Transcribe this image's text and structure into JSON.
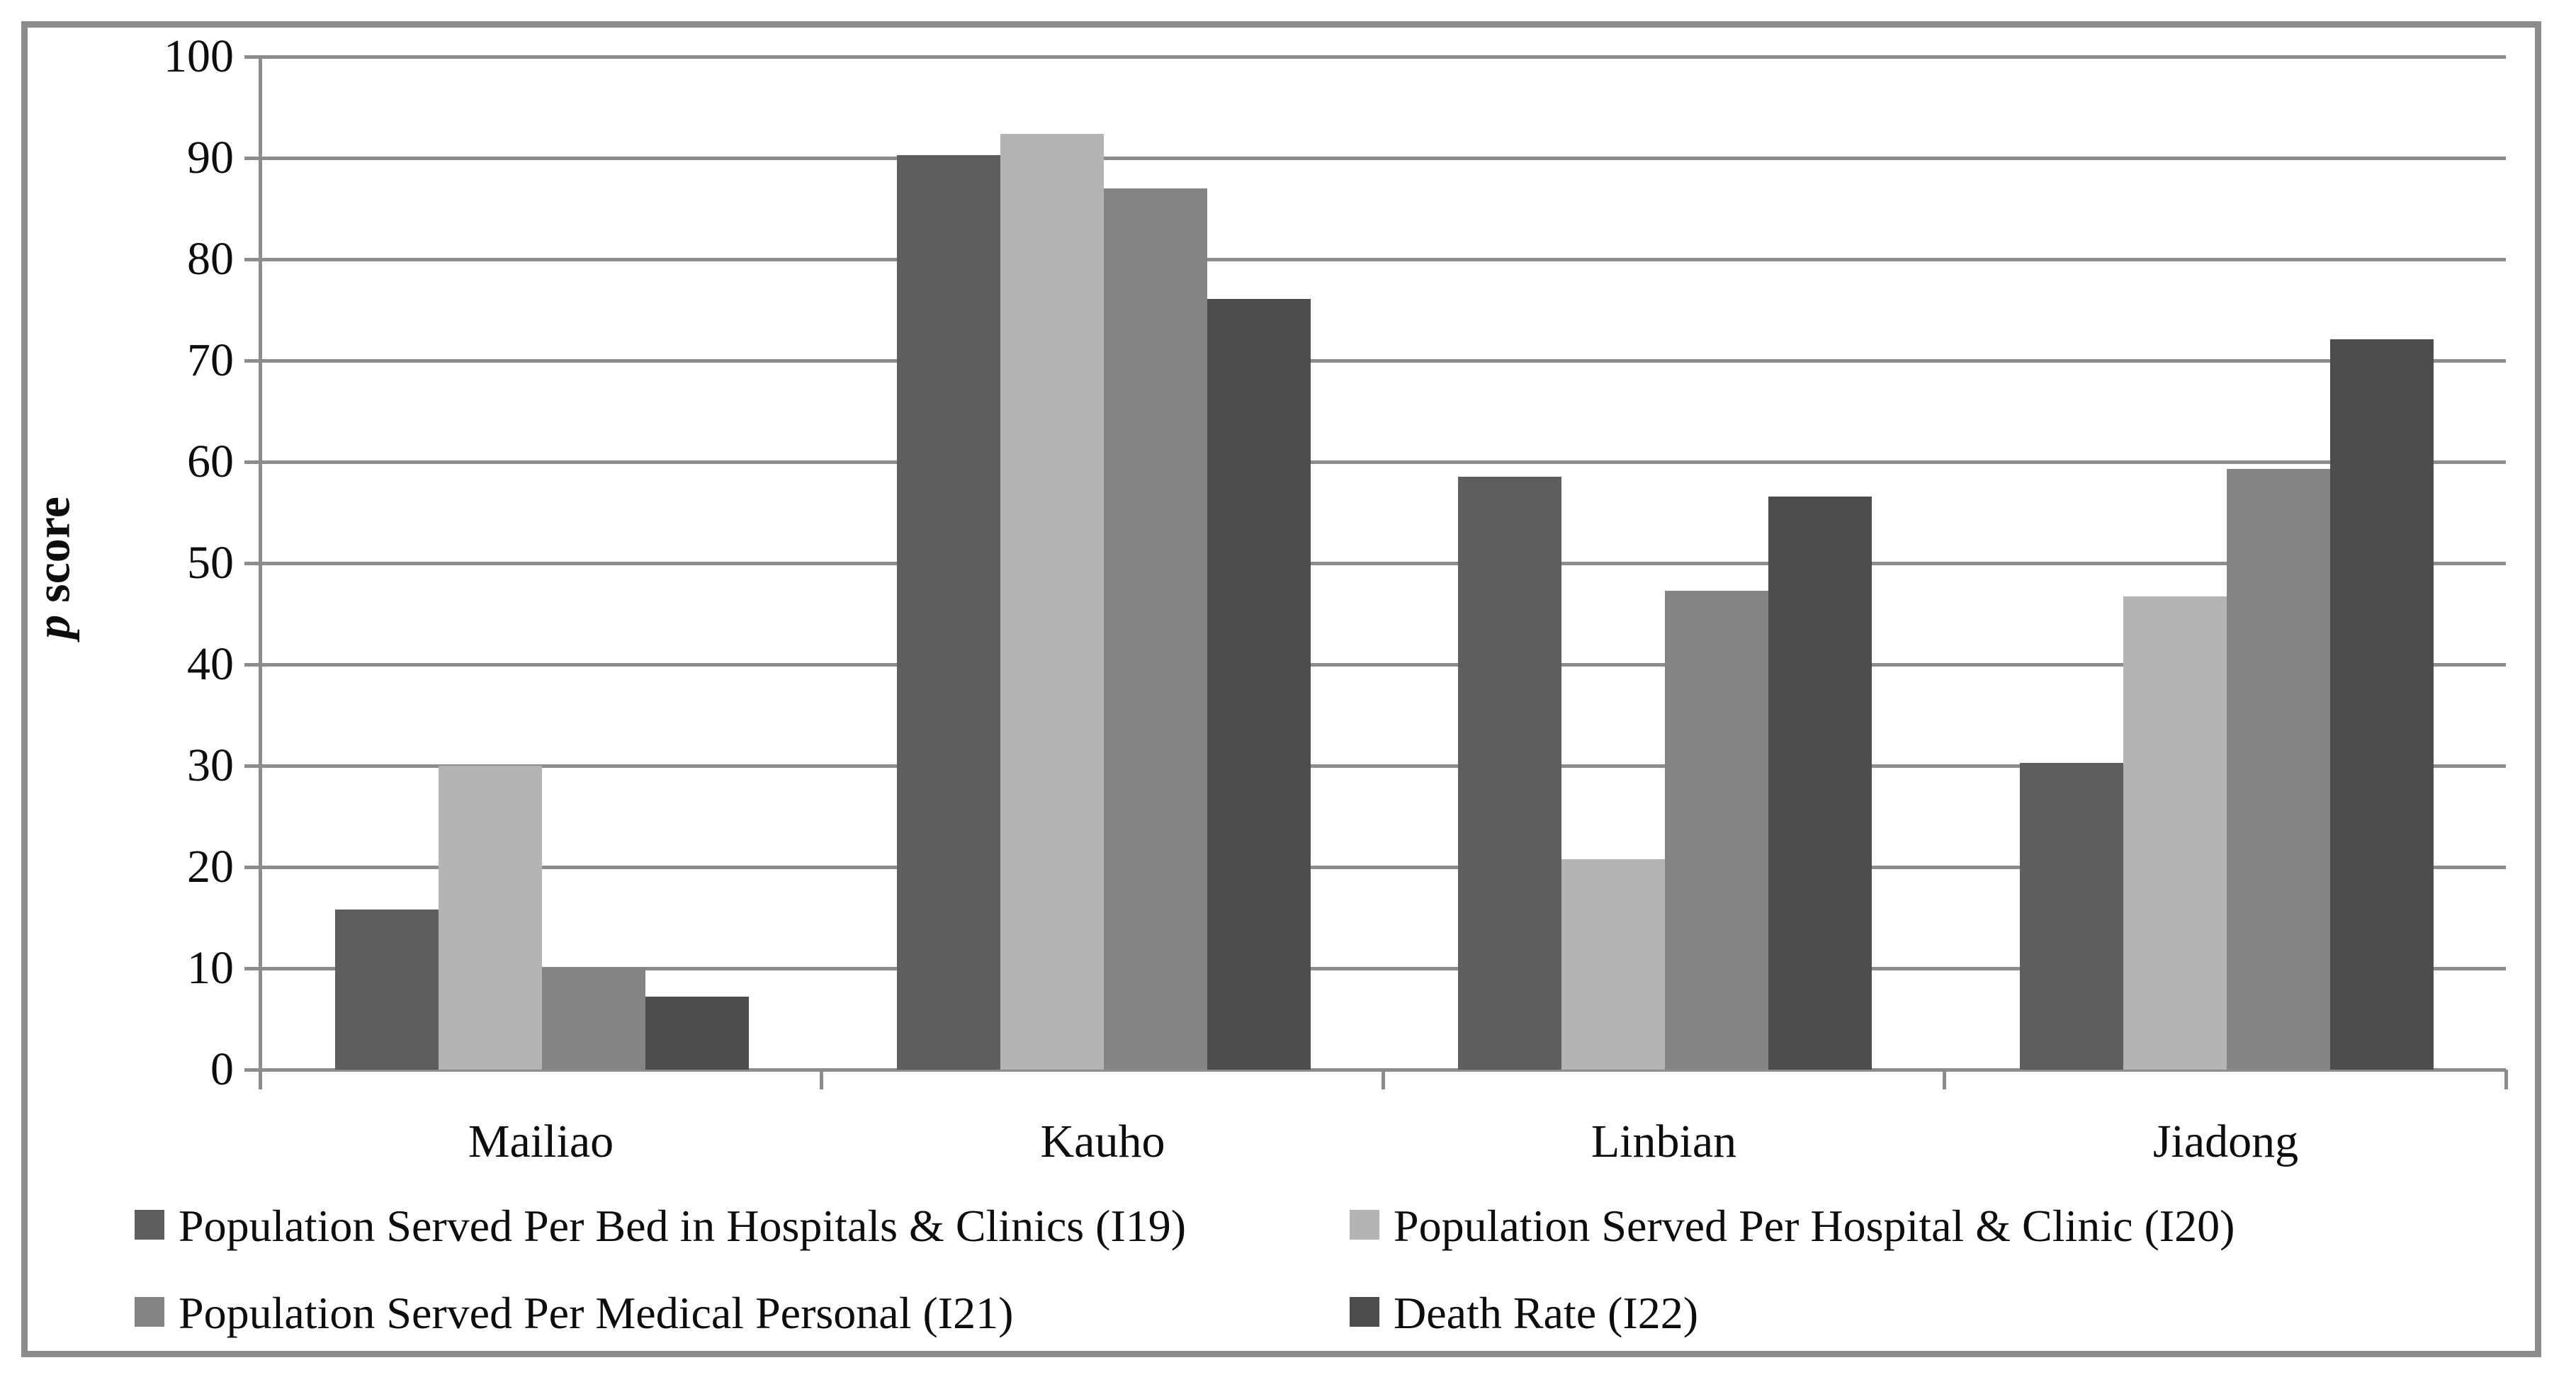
{
  "figure": {
    "background": "#ffffff",
    "border_color": "#8c8c8c"
  },
  "chart_data": {
    "type": "bar",
    "title": "",
    "xlabel": "",
    "ylabel": "p score",
    "ylabel_parts": {
      "italic": "p",
      "rest": " score"
    },
    "ylim": [
      0,
      100
    ],
    "yticks": [
      0,
      10,
      20,
      30,
      40,
      50,
      60,
      70,
      80,
      90,
      100
    ],
    "grid": true,
    "gridline_color": "#8c8c8c",
    "legend_position": "bottom",
    "categories": [
      "Mailiao",
      "Kauho",
      "Linbian",
      "Jiadong"
    ],
    "series": [
      {
        "name": "Population Served Per Bed in Hospitals & Clinics (I19)",
        "color": "#5e5e5e",
        "values": [
          15.8,
          90.3,
          58.5,
          30.3
        ]
      },
      {
        "name": "Population Served Per Hospital & Clinic (I20)",
        "color": "#b4b4b4",
        "values": [
          30.0,
          92.4,
          20.8,
          46.7
        ]
      },
      {
        "name": "Population Served Per Medical Personal (I21)",
        "color": "#848484",
        "values": [
          10.1,
          87.0,
          47.3,
          59.3
        ]
      },
      {
        "name": "Death Rate (I22)",
        "color": "#4d4d4d",
        "values": [
          7.2,
          76.1,
          56.6,
          72.1
        ]
      }
    ]
  }
}
